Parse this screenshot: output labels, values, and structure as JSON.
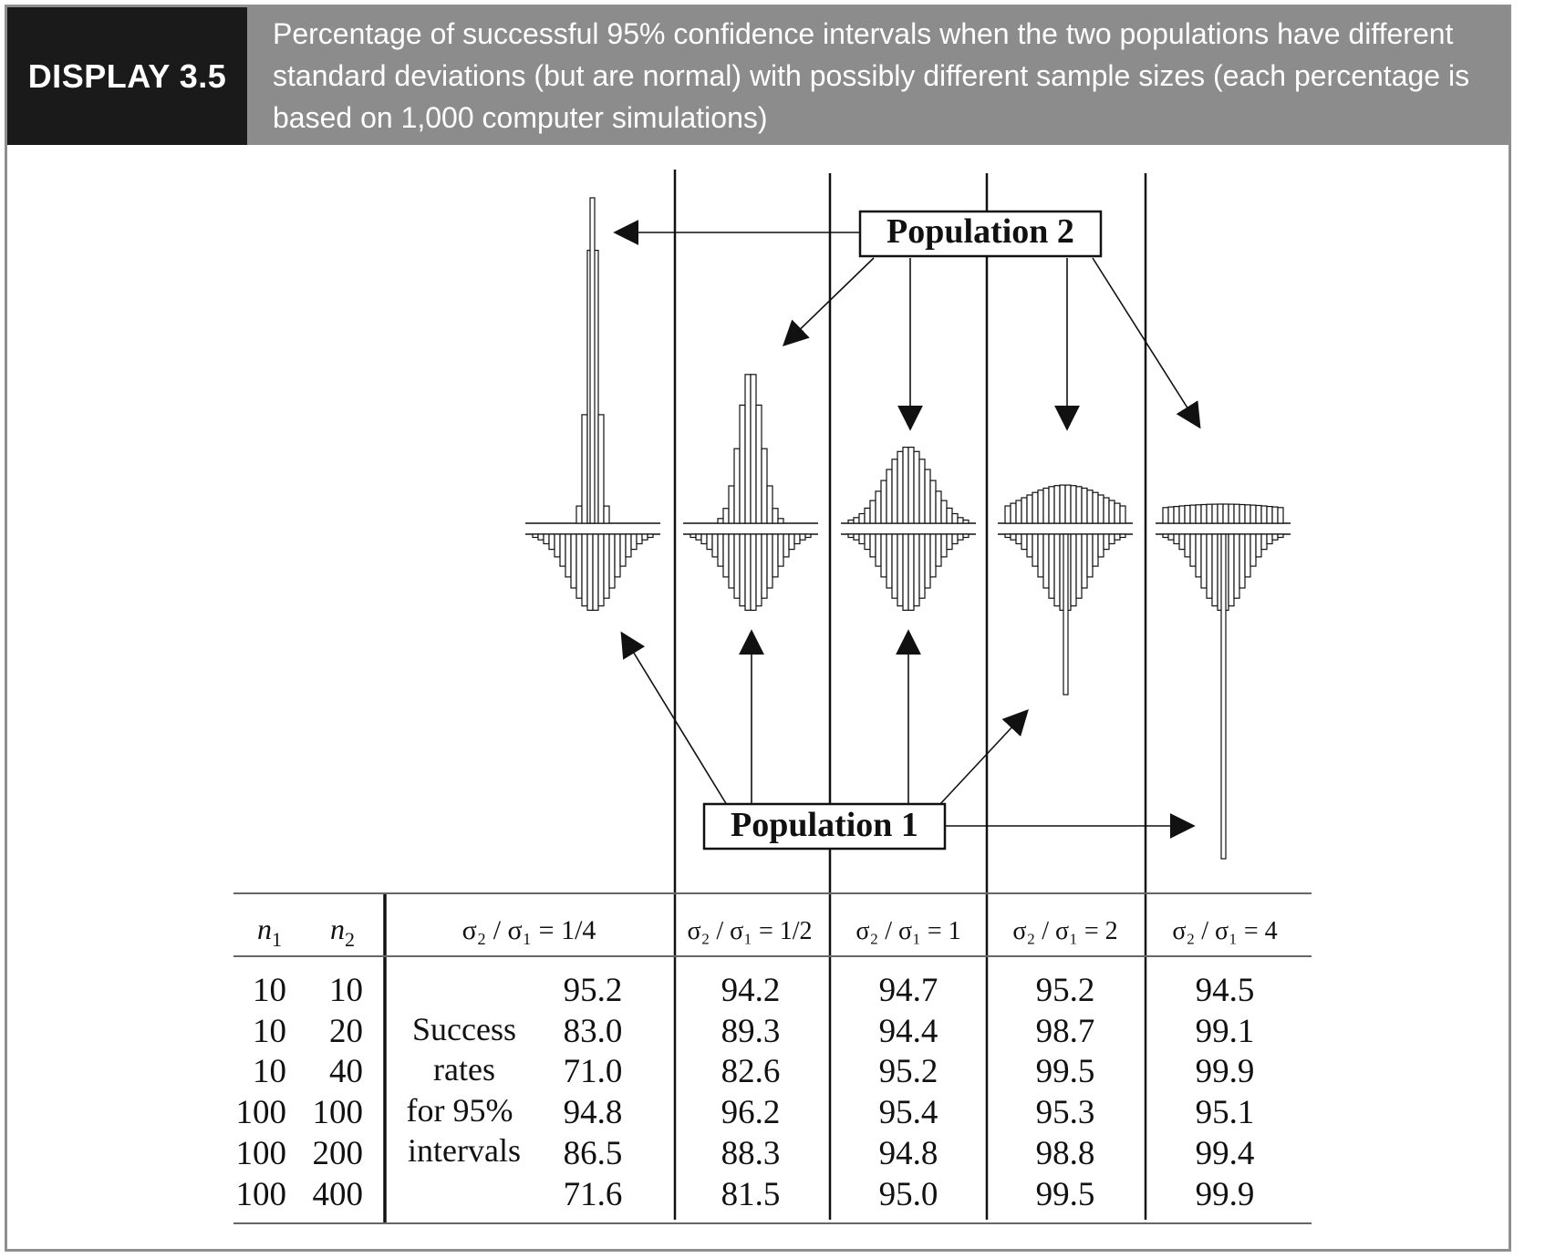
{
  "header": {
    "tag": "DISPLAY 3.5",
    "caption": "Percentage of successful 95% confidence intervals when the two populations have different standard deviations (but are normal) with possibly different sample sizes (each percentage is based on 1,000 computer simulations)"
  },
  "labels": {
    "population2": "Population 2",
    "population1": "Population 1"
  },
  "table": {
    "n1_header": "n",
    "n1_sub": "1",
    "n2_header": "n",
    "n2_sub": "2",
    "columns": [
      "σ₂ / σ₁ = 1/4",
      "σ₂ / σ₁ = 1/2",
      "σ₂ / σ₁ = 1",
      "σ₂ / σ₁ = 2",
      "σ₂ / σ₁ = 4"
    ],
    "row_label": [
      "Success",
      "rates",
      "for 95%",
      "intervals"
    ],
    "rows": [
      {
        "n1": "10",
        "n2": "10",
        "values": [
          "95.2",
          "94.2",
          "94.7",
          "95.2",
          "94.5"
        ]
      },
      {
        "n1": "10",
        "n2": "20",
        "values": [
          "83.0",
          "89.3",
          "94.4",
          "98.7",
          "99.1"
        ]
      },
      {
        "n1": "10",
        "n2": "40",
        "values": [
          "71.0",
          "82.6",
          "95.2",
          "99.5",
          "99.9"
        ]
      },
      {
        "n1": "100",
        "n2": "100",
        "values": [
          "94.8",
          "96.2",
          "95.4",
          "95.3",
          "95.1"
        ]
      },
      {
        "n1": "100",
        "n2": "200",
        "values": [
          "86.5",
          "88.3",
          "94.8",
          "98.8",
          "99.4"
        ]
      },
      {
        "n1": "100",
        "n2": "400",
        "values": [
          "71.6",
          "81.5",
          "95.0",
          "99.5",
          "99.9"
        ]
      }
    ]
  },
  "sd_ratios": [
    0.25,
    0.5,
    1,
    2,
    4
  ],
  "colors": {
    "tag_bg": "#1a1a1a",
    "caption_bg": "#8c8c8c",
    "frame": "#8f8f8f",
    "ink": "#111111"
  }
}
